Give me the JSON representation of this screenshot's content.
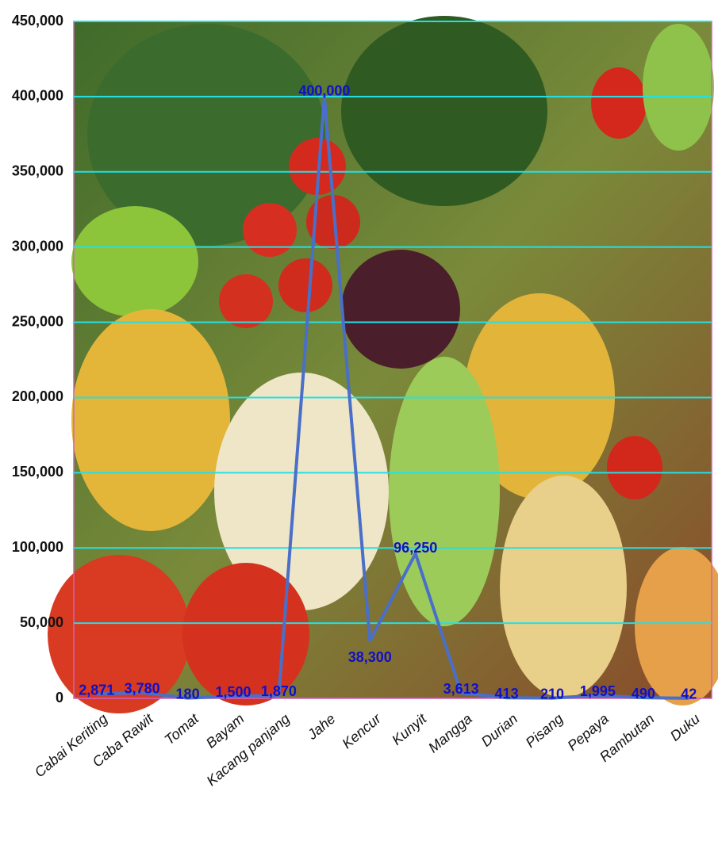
{
  "chart_data": {
    "type": "line",
    "categories": [
      "Cabai Keriting",
      "Caba Rawit",
      "Tomat",
      "Bayam",
      "Kacang panjang",
      "Jahe",
      "Kencur",
      "Kunyit",
      "Mangga",
      "Durian",
      "Pisang",
      "Pepaya",
      "Rambutan",
      "Duku"
    ],
    "values": [
      2871,
      3780,
      180,
      1500,
      1870,
      400000,
      38300,
      96250,
      3613,
      413,
      210,
      1995,
      490,
      42
    ],
    "value_labels": [
      "2,871",
      "3,780",
      "180",
      "1,500",
      "1,870",
      "400,000",
      "38,300",
      "96,250",
      "3,613",
      "413",
      "210",
      "1,995",
      "490",
      "42"
    ],
    "color": "#4a6fc8",
    "ylim": [
      0,
      450000
    ],
    "yticks": [
      0,
      {
        "value": 50000,
        "label": "50,000"
      },
      {
        "value": 100000,
        "label": "100,000"
      },
      {
        "value": 150000,
        "label": "150,000"
      },
      {
        "value": 200000,
        "label": "200,000"
      },
      {
        "value": 250000,
        "label": "250,000"
      },
      {
        "value": 300000,
        "label": "300,000"
      },
      {
        "value": 350000,
        "label": "350,000"
      },
      {
        "value": 400000,
        "label": "400,000"
      },
      {
        "value": 450000,
        "label": "450,000"
      }
    ],
    "grid": true
  }
}
